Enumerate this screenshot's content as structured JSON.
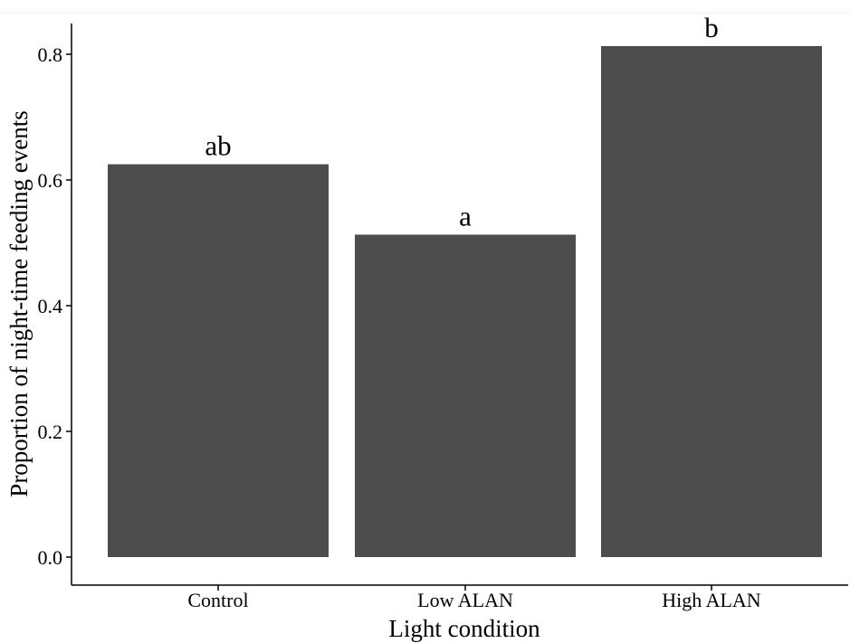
{
  "chart_data": {
    "type": "bar",
    "categories": [
      "Control",
      "Low ALAN",
      "High ALAN"
    ],
    "values": [
      0.625,
      0.513,
      0.813
    ],
    "annotations": [
      "ab",
      "a",
      "b"
    ],
    "title": "",
    "xlabel": "Light condition",
    "ylabel": "Proportion of night-time feeding events",
    "ylim": [
      0,
      0.85
    ],
    "yticks": [
      "0.0",
      "0.2",
      "0.4",
      "0.6",
      "0.8"
    ],
    "bar_color": "#4d4d4d",
    "grid": false,
    "legend": "none"
  }
}
